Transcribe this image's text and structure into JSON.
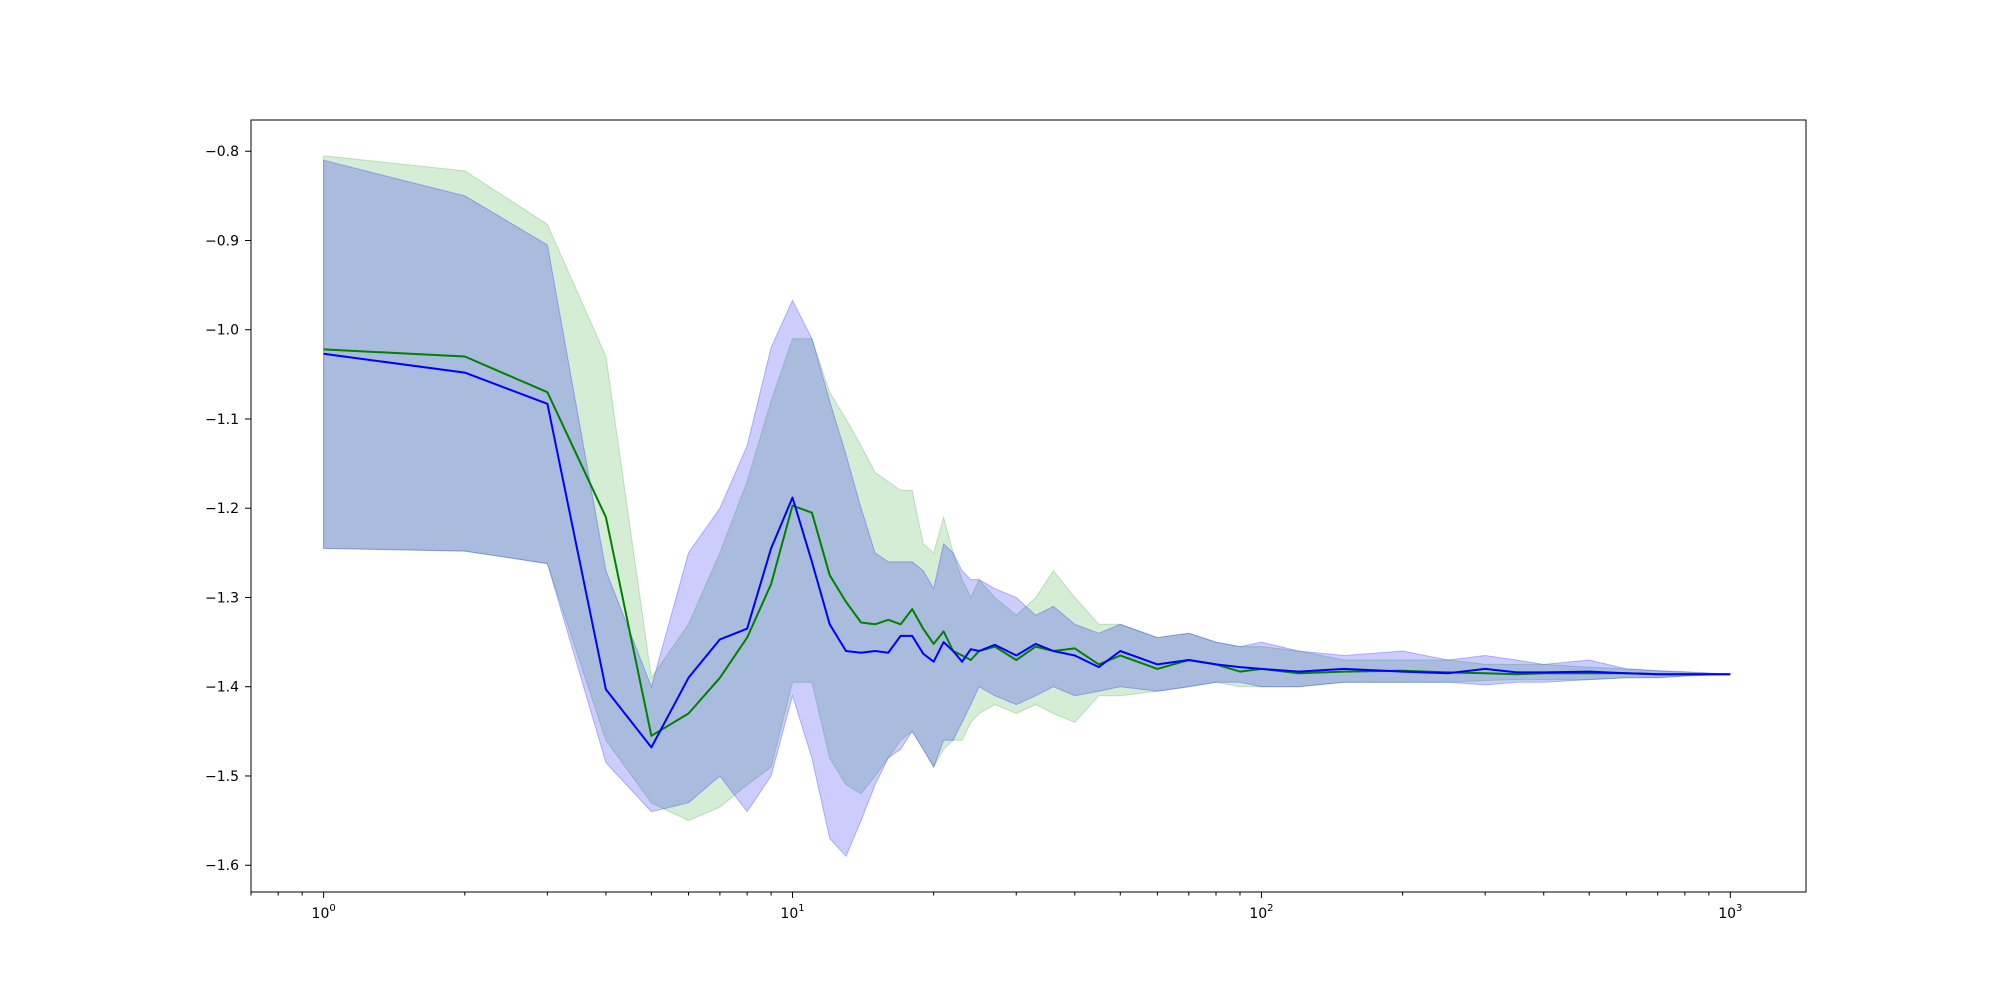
{
  "chart_data": {
    "type": "line",
    "title": "",
    "xlabel": "",
    "ylabel": "",
    "xscale": "log",
    "xlim": [
      0.7,
      1450
    ],
    "ylim": [
      -1.63,
      -0.765
    ],
    "grid": false,
    "legend": "none",
    "x_ticks": [
      {
        "value": 1,
        "base": "10",
        "exp": "0"
      },
      {
        "value": 10,
        "base": "10",
        "exp": "1"
      },
      {
        "value": 100,
        "base": "10",
        "exp": "2"
      },
      {
        "value": 1000,
        "base": "10",
        "exp": "3"
      }
    ],
    "y_ticks": [
      {
        "value": -0.8,
        "label": "−0.8"
      },
      {
        "value": -0.9,
        "label": "−0.9"
      },
      {
        "value": -1.0,
        "label": "−1.0"
      },
      {
        "value": -1.1,
        "label": "−1.1"
      },
      {
        "value": -1.2,
        "label": "−1.2"
      },
      {
        "value": -1.3,
        "label": "−1.3"
      },
      {
        "value": -1.4,
        "label": "−1.4"
      },
      {
        "value": -1.5,
        "label": "−1.5"
      },
      {
        "value": -1.6,
        "label": "−1.6"
      }
    ],
    "series": [
      {
        "color": "#008000",
        "band_color": "#2ca02c",
        "x": [
          1,
          2,
          3,
          4,
          5,
          6,
          7,
          8,
          9,
          10,
          11,
          12,
          13,
          14,
          15,
          16,
          17,
          18,
          19,
          20,
          21,
          22,
          23,
          24,
          25,
          27,
          30,
          33,
          36,
          40,
          45,
          50,
          60,
          70,
          80,
          90,
          100,
          120,
          150,
          200,
          250,
          300,
          350,
          400,
          500,
          600,
          700,
          800,
          1000
        ],
        "y": [
          -1.022,
          -1.03,
          -1.07,
          -1.21,
          -1.455,
          -1.43,
          -1.39,
          -1.345,
          -1.285,
          -1.197,
          -1.205,
          -1.275,
          -1.305,
          -1.328,
          -1.33,
          -1.325,
          -1.33,
          -1.313,
          -1.335,
          -1.352,
          -1.338,
          -1.36,
          -1.365,
          -1.37,
          -1.36,
          -1.355,
          -1.37,
          -1.355,
          -1.36,
          -1.357,
          -1.375,
          -1.365,
          -1.38,
          -1.37,
          -1.375,
          -1.383,
          -1.38,
          -1.385,
          -1.383,
          -1.382,
          -1.384,
          -1.385,
          -1.386,
          -1.385,
          -1.385,
          -1.385,
          -1.386,
          -1.386,
          -1.386
        ],
        "upper": [
          -0.805,
          -0.822,
          -0.882,
          -1.03,
          -1.39,
          -1.33,
          -1.25,
          -1.17,
          -1.08,
          -1.01,
          -1.01,
          -1.07,
          -1.1,
          -1.13,
          -1.16,
          -1.17,
          -1.18,
          -1.18,
          -1.24,
          -1.25,
          -1.21,
          -1.25,
          -1.28,
          -1.3,
          -1.28,
          -1.3,
          -1.32,
          -1.3,
          -1.27,
          -1.3,
          -1.33,
          -1.33,
          -1.345,
          -1.34,
          -1.35,
          -1.355,
          -1.355,
          -1.36,
          -1.37,
          -1.37,
          -1.37,
          -1.375,
          -1.375,
          -1.375,
          -1.378,
          -1.38,
          -1.382,
          -1.384,
          -1.386
        ],
        "lower": [
          -1.245,
          -1.248,
          -1.262,
          -1.46,
          -1.53,
          -1.55,
          -1.535,
          -1.51,
          -1.49,
          -1.395,
          -1.395,
          -1.48,
          -1.51,
          -1.52,
          -1.5,
          -1.48,
          -1.46,
          -1.45,
          -1.47,
          -1.49,
          -1.47,
          -1.46,
          -1.46,
          -1.44,
          -1.43,
          -1.42,
          -1.43,
          -1.42,
          -1.43,
          -1.44,
          -1.41,
          -1.41,
          -1.405,
          -1.4,
          -1.395,
          -1.4,
          -1.4,
          -1.4,
          -1.395,
          -1.395,
          -1.395,
          -1.393,
          -1.392,
          -1.392,
          -1.392,
          -1.39,
          -1.39,
          -1.388,
          -1.386
        ]
      },
      {
        "color": "#0000ff",
        "band_color": "#0000ff",
        "x": [
          1,
          2,
          3,
          4,
          5,
          6,
          7,
          8,
          9,
          10,
          11,
          12,
          13,
          14,
          15,
          16,
          17,
          18,
          19,
          20,
          21,
          22,
          23,
          24,
          25,
          27,
          30,
          33,
          36,
          40,
          45,
          50,
          60,
          70,
          80,
          90,
          100,
          120,
          150,
          200,
          250,
          300,
          350,
          400,
          500,
          600,
          700,
          800,
          1000
        ],
        "y": [
          -1.027,
          -1.048,
          -1.083,
          -1.403,
          -1.468,
          -1.39,
          -1.347,
          -1.335,
          -1.245,
          -1.188,
          -1.26,
          -1.33,
          -1.36,
          -1.362,
          -1.36,
          -1.362,
          -1.343,
          -1.343,
          -1.363,
          -1.372,
          -1.35,
          -1.36,
          -1.372,
          -1.358,
          -1.36,
          -1.353,
          -1.365,
          -1.352,
          -1.36,
          -1.365,
          -1.378,
          -1.36,
          -1.375,
          -1.37,
          -1.375,
          -1.378,
          -1.38,
          -1.383,
          -1.38,
          -1.383,
          -1.385,
          -1.38,
          -1.384,
          -1.384,
          -1.383,
          -1.385,
          -1.386,
          -1.386,
          -1.386
        ],
        "upper": [
          -0.81,
          -0.85,
          -0.905,
          -1.27,
          -1.4,
          -1.25,
          -1.2,
          -1.13,
          -1.02,
          -0.967,
          -1.01,
          -1.08,
          -1.14,
          -1.2,
          -1.25,
          -1.26,
          -1.26,
          -1.26,
          -1.27,
          -1.29,
          -1.24,
          -1.25,
          -1.27,
          -1.28,
          -1.28,
          -1.29,
          -1.3,
          -1.32,
          -1.31,
          -1.33,
          -1.34,
          -1.33,
          -1.345,
          -1.34,
          -1.35,
          -1.355,
          -1.35,
          -1.36,
          -1.365,
          -1.36,
          -1.37,
          -1.365,
          -1.37,
          -1.375,
          -1.37,
          -1.38,
          -1.382,
          -1.383,
          -1.386
        ],
        "lower": [
          -1.245,
          -1.248,
          -1.262,
          -1.485,
          -1.54,
          -1.53,
          -1.5,
          -1.54,
          -1.5,
          -1.41,
          -1.48,
          -1.57,
          -1.59,
          -1.55,
          -1.51,
          -1.48,
          -1.47,
          -1.45,
          -1.47,
          -1.49,
          -1.46,
          -1.46,
          -1.44,
          -1.42,
          -1.4,
          -1.41,
          -1.42,
          -1.41,
          -1.4,
          -1.41,
          -1.405,
          -1.4,
          -1.405,
          -1.4,
          -1.395,
          -1.395,
          -1.4,
          -1.4,
          -1.395,
          -1.395,
          -1.395,
          -1.398,
          -1.395,
          -1.395,
          -1.392,
          -1.39,
          -1.39,
          -1.388,
          -1.386
        ]
      }
    ]
  }
}
